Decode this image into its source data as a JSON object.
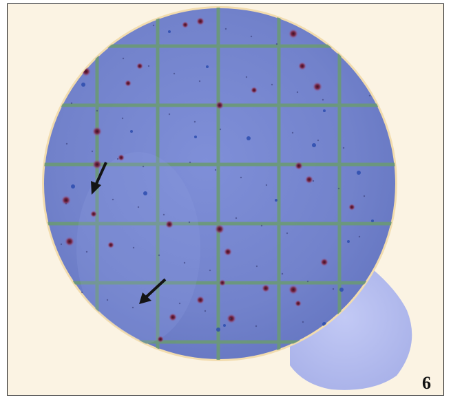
{
  "figure": {
    "panel_label": "6"
  },
  "colors": {
    "background": "#fbf3e3",
    "plate": "#7686cf",
    "plate_edge": "#f0d9a8",
    "grid": "#6d9a78",
    "tab": "#b5bdf0",
    "colony_red": "#7a2a4a",
    "colony_blue": "#2b4cae",
    "arrow": "#141414"
  }
}
